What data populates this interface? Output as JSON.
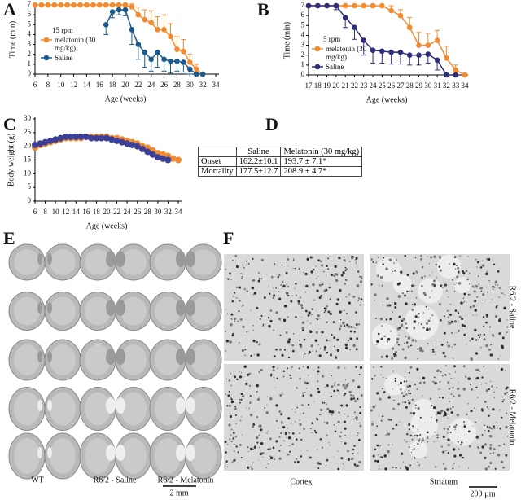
{
  "chart_data": [
    {
      "label": "A",
      "type": "line",
      "xlabel": "Age (weeks)",
      "ylabel": "Time (min)",
      "legend_title": "15 rpm",
      "xlim": [
        6,
        34
      ],
      "xticks": [
        6,
        8,
        10,
        12,
        14,
        16,
        18,
        20,
        22,
        24,
        26,
        28,
        30,
        32,
        34
      ],
      "ylim": [
        0,
        7
      ],
      "yticks": [
        0,
        1,
        2,
        3,
        4,
        5,
        6,
        7
      ],
      "series": [
        {
          "name": "melatonin (30 mg/kg)",
          "color": "#f28a30",
          "error_bars": "upper",
          "x": [
            6,
            7,
            8,
            9,
            10,
            11,
            12,
            13,
            14,
            15,
            16,
            17,
            18,
            19,
            20,
            21,
            22,
            23,
            24,
            25,
            26,
            27,
            28,
            29,
            30,
            31,
            32
          ],
          "values": [
            7,
            7,
            7,
            7,
            7,
            7,
            7,
            7,
            7,
            7,
            7,
            7,
            7,
            7,
            7,
            6.8,
            6,
            5.5,
            5.2,
            4.5,
            4.5,
            3.8,
            2.5,
            2.3,
            1.2,
            0.5,
            0
          ],
          "errors": [
            0,
            0,
            0,
            0,
            0,
            0,
            0,
            0,
            0,
            0,
            0,
            0,
            0,
            0,
            0,
            0.3,
            0.8,
            1,
            1.2,
            1.3,
            1.5,
            1.3,
            1.3,
            1.2,
            0.8,
            0.5,
            0
          ]
        },
        {
          "name": "Saline",
          "color": "#1d5a8c",
          "error_bars": "lower",
          "x": [
            17,
            18,
            19,
            20,
            21,
            22,
            23,
            24,
            25,
            26,
            27,
            28,
            29,
            30,
            31,
            32
          ],
          "values": [
            5,
            6.3,
            6.5,
            6.5,
            4.5,
            3,
            2.2,
            1.5,
            2.2,
            1.5,
            1.3,
            1.3,
            1.2,
            0.5,
            0,
            0
          ],
          "errors": [
            1,
            0.6,
            0.5,
            0.6,
            1.5,
            1.5,
            1.5,
            1.2,
            1.5,
            1.2,
            1.2,
            1,
            1,
            0.5,
            0,
            0
          ]
        }
      ]
    },
    {
      "label": "B",
      "type": "line",
      "xlabel": "Age (weeks)",
      "ylabel": "Time (min)",
      "legend_title": "5 rpm",
      "xlim": [
        17,
        34
      ],
      "xticks": [
        17,
        18,
        19,
        20,
        21,
        22,
        23,
        24,
        25,
        26,
        27,
        28,
        29,
        30,
        31,
        32,
        33,
        34
      ],
      "ylim": [
        0,
        7
      ],
      "yticks": [
        0,
        1,
        2,
        3,
        4,
        5,
        6,
        7
      ],
      "series": [
        {
          "name": "melatonin (30 mg/kg)",
          "color": "#f28a30",
          "error_bars": "upper",
          "x": [
            17,
            18,
            19,
            20,
            21,
            22,
            23,
            24,
            25,
            26,
            27,
            28,
            29,
            30,
            31,
            32,
            33,
            34
          ],
          "values": [
            7,
            7,
            7,
            7,
            7,
            7,
            7,
            7,
            7,
            6.5,
            6,
            4.8,
            3,
            3,
            3.5,
            1.7,
            0.5,
            0
          ],
          "errors": [
            0,
            0,
            0,
            0,
            0,
            0,
            0,
            0,
            0,
            0.5,
            0.6,
            1,
            1.3,
            1.2,
            1,
            1.2,
            0.5,
            0
          ]
        },
        {
          "name": "Saline",
          "color": "#2e2d7a",
          "error_bars": "lower",
          "x": [
            17,
            18,
            19,
            20,
            21,
            22,
            23,
            24,
            25,
            26,
            27,
            28,
            29,
            30,
            31,
            32,
            33
          ],
          "values": [
            7,
            7,
            7,
            7,
            5.8,
            4.8,
            3.5,
            2.5,
            2.4,
            2.3,
            2.3,
            2,
            2,
            2.1,
            1.5,
            0,
            0
          ],
          "errors": [
            0,
            0,
            0,
            0.4,
            1,
            1.2,
            1.5,
            1.3,
            1.2,
            1.2,
            1.2,
            1,
            1,
            0.9,
            1,
            0,
            0
          ]
        }
      ]
    },
    {
      "label": "C",
      "type": "scatter",
      "xlabel": "Age (weeks)",
      "ylabel": "Body weight (g)",
      "xlim": [
        6,
        34
      ],
      "xticks": [
        6,
        8,
        10,
        12,
        14,
        16,
        18,
        20,
        22,
        24,
        26,
        28,
        30,
        32,
        34
      ],
      "ylim": [
        0,
        30
      ],
      "yticks": [
        0,
        5,
        10,
        15,
        20,
        25,
        30
      ],
      "series": [
        {
          "color": "#f28a30",
          "x": [
            6,
            7,
            8,
            9,
            10,
            11,
            12,
            13,
            14,
            15,
            16,
            17,
            18,
            19,
            20,
            21,
            22,
            23,
            24,
            25,
            26,
            27,
            28,
            29,
            30,
            31,
            32,
            33,
            34
          ],
          "values": [
            19.5,
            20.5,
            21,
            21.5,
            22,
            22.5,
            23,
            23,
            23,
            23,
            23.5,
            23.5,
            23.5,
            23.5,
            23.5,
            23,
            23,
            22.5,
            22,
            21.5,
            21,
            20,
            19.5,
            18.5,
            17.5,
            17,
            16.5,
            15.5,
            15
          ]
        },
        {
          "color": "#3b3f96",
          "x": [
            6,
            7,
            8,
            9,
            10,
            11,
            12,
            13,
            14,
            15,
            16,
            17,
            18,
            19,
            20,
            21,
            22,
            23,
            24,
            25,
            26,
            27,
            28,
            29,
            30,
            31,
            32
          ],
          "values": [
            20.5,
            21,
            21.5,
            22,
            22.5,
            23,
            23.5,
            23.5,
            23.5,
            23.5,
            23.5,
            23,
            23,
            23,
            23,
            22.5,
            22,
            21.5,
            21,
            20.5,
            20,
            19,
            18,
            17,
            16,
            15.5,
            15
          ]
        }
      ]
    }
  ],
  "table": {
    "label": "D",
    "columns": [
      "Saline",
      "Melatonin (30 mg/kg)"
    ],
    "rows": [
      [
        "Onset",
        "162.2±10.1",
        "193.7 ± 7.1*"
      ],
      [
        "Mortality",
        "177.5±12.7",
        "208.9 ± 4.7*"
      ]
    ]
  },
  "panel_e": {
    "label": "E",
    "columns": [
      "WT",
      "R6/2 - Saline",
      "R6/2 - Melatonin"
    ],
    "scale_bar": "2 mm"
  },
  "panel_f": {
    "label": "F",
    "columns": [
      "Cortex",
      "Striatum"
    ],
    "rows": [
      "R6/2 - Saline",
      "R6/2 - Melatonin"
    ],
    "scale_bar": "200 µm"
  }
}
